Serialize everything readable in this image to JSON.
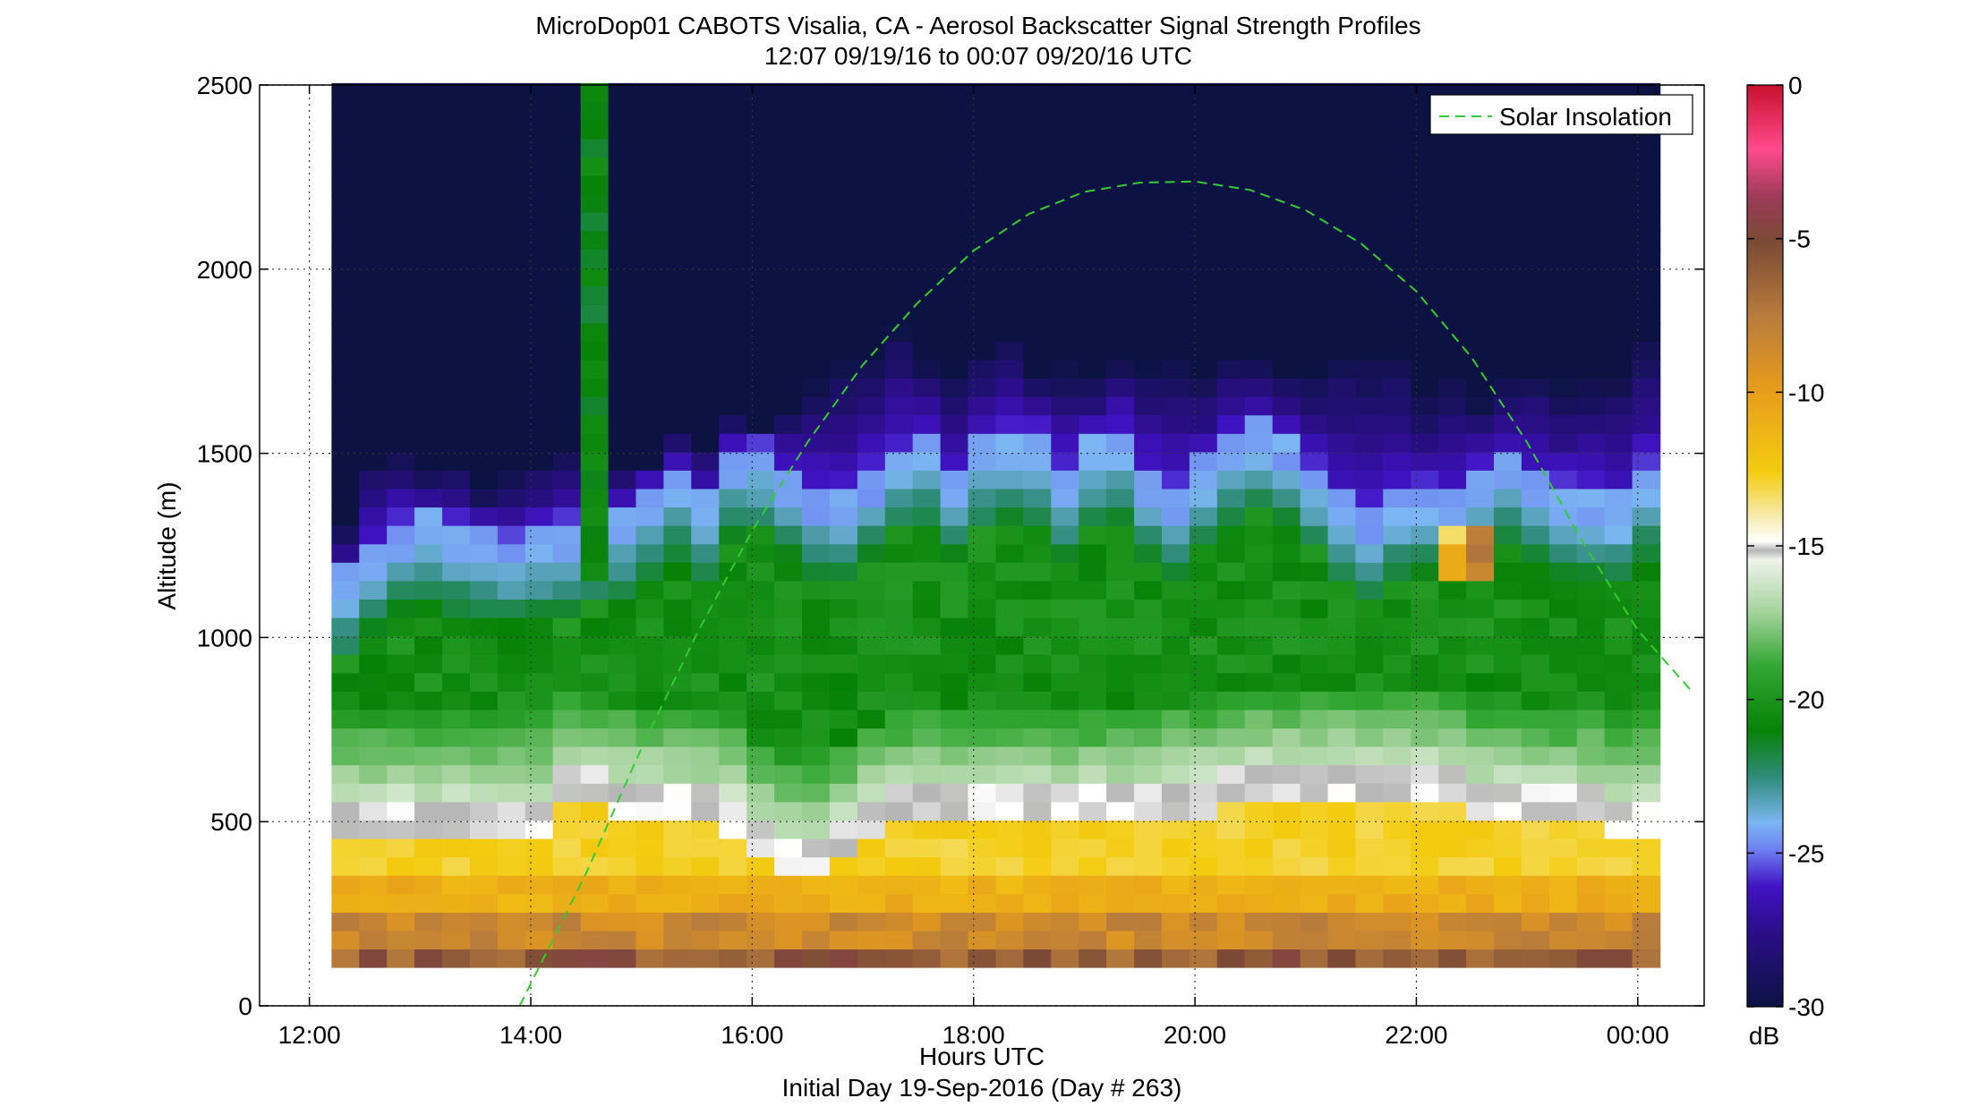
{
  "chart_data": {
    "type": "heatmap",
    "title": "MicroDop01 CABOTS Visalia, CA - Aerosol Backscatter Signal Strength Profiles",
    "subtitle": "12:07 09/19/16 to 00:07 09/20/16  UTC",
    "xlabel": "Hours UTC",
    "xlabel2": "Initial Day 19-Sep-2016 (Day # 263)",
    "ylabel": "Altitude (m)",
    "xlim": [
      11.55,
      24.6
    ],
    "ylim": [
      0,
      2500
    ],
    "x_ticks": [
      12,
      14,
      16,
      18,
      20,
      22,
      24
    ],
    "x_tick_labels": [
      "12:00",
      "14:00",
      "16:00",
      "18:00",
      "20:00",
      "22:00",
      "00:00"
    ],
    "y_ticks": [
      0,
      500,
      1000,
      1500,
      2000,
      2500
    ],
    "y_tick_labels": [
      "0",
      "500",
      "1000",
      "1500",
      "2000",
      "2500"
    ],
    "grid": "dotted",
    "colorbar": {
      "label": "dB",
      "clim": [
        -30,
        0
      ],
      "ticks": [
        0,
        -5,
        -10,
        -15,
        -20,
        -25,
        -30
      ],
      "tick_labels": [
        "0",
        "-5",
        "-10",
        "-15",
        "-20",
        "-25",
        "-30"
      ]
    },
    "data_time_range_h": [
      12.2,
      24.15
    ],
    "time_step_h": 0.25,
    "altitude_range_m": [
      105,
      2500
    ],
    "altitude_step_m": 50,
    "profile_times_h": [
      12.2,
      12.45,
      12.7,
      12.95,
      13.2,
      13.45,
      13.7,
      13.95,
      14.2,
      14.45,
      14.7,
      14.95,
      15.2,
      15.45,
      15.7,
      15.95,
      16.2,
      16.45,
      16.7,
      16.95,
      17.2,
      17.45,
      17.7,
      17.95,
      18.2,
      18.45,
      18.7,
      18.95,
      19.2,
      19.45,
      19.7,
      19.95,
      20.2,
      20.45,
      20.7,
      20.95,
      21.2,
      21.45,
      21.7,
      21.95,
      22.2,
      22.45,
      22.7,
      22.95,
      23.2,
      23.45,
      23.7,
      23.95
    ],
    "aerosol_layer_top_m": [
      1100,
      1180,
      1230,
      1250,
      1230,
      1210,
      1190,
      1210,
      1230,
      1240,
      1260,
      1330,
      1380,
      1300,
      1430,
      1440,
      1380,
      1320,
      1320,
      1380,
      1440,
      1460,
      1380,
      1450,
      1480,
      1470,
      1380,
      1450,
      1480,
      1380,
      1330,
      1400,
      1450,
      1500,
      1460,
      1390,
      1300,
      1260,
      1310,
      1330,
      1310,
      1380,
      1410,
      1360,
      1330,
      1320,
      1300,
      1380
    ],
    "haze_top_m": [
      1300,
      1480,
      1520,
      1440,
      1460,
      1400,
      1440,
      1480,
      1500,
      1360,
      1480,
      1470,
      1560,
      1530,
      1600,
      1560,
      1610,
      1690,
      1760,
      1780,
      1840,
      1750,
      1720,
      1780,
      1800,
      1730,
      1750,
      1720,
      1760,
      1740,
      1770,
      1700,
      1780,
      1740,
      1720,
      1700,
      1770,
      1750,
      1760,
      1640,
      1710,
      1640,
      1720,
      1730,
      1690,
      1710,
      1720,
      1800
    ],
    "mixed_layer_top_m": [
      540,
      540,
      540,
      540,
      540,
      540,
      540,
      540,
      600,
      600,
      580,
      580,
      570,
      560,
      540,
      480,
      440,
      440,
      480,
      520,
      560,
      580,
      560,
      560,
      560,
      560,
      560,
      560,
      560,
      560,
      580,
      590,
      600,
      620,
      620,
      630,
      630,
      620,
      620,
      620,
      600,
      580,
      580,
      580,
      560,
      560,
      540,
      540
    ],
    "dust_column": {
      "time_h": [
        14.45,
        14.6
      ],
      "altitude_m": [
        540,
        2500
      ],
      "value_db": -21
    },
    "feature_cells_db": [
      {
        "t": 22.3,
        "alt_m": [
          1150,
          1310
        ],
        "value_db": -12
      },
      {
        "t": 22.55,
        "alt_m": [
          1150,
          1310
        ],
        "value_db": -7
      }
    ],
    "series": [
      {
        "name": "Solar Insolation",
        "style": "dashed",
        "color": "#33cc33",
        "x": [
          13.9,
          14.5,
          15.0,
          15.5,
          16.0,
          16.5,
          17.0,
          17.5,
          18.0,
          18.5,
          19.0,
          19.5,
          20.0,
          20.5,
          21.0,
          21.5,
          22.0,
          22.5,
          23.0,
          23.5,
          24.0,
          24.5
        ],
        "y": [
          0,
          360,
          700,
          1010,
          1290,
          1530,
          1740,
          1910,
          2050,
          2150,
          2210,
          2235,
          2238,
          2215,
          2160,
          2070,
          1940,
          1760,
          1530,
          1260,
          1020,
          850
        ]
      }
    ],
    "legend": "top-right"
  },
  "colors": {
    "background_above_layer": "#0c1343",
    "colormap": [
      "#0c1343",
      "#3a0da8",
      "#6d7ff0",
      "#2e8b78",
      "#0b8a0b",
      "#e6f0e3",
      "#f3cc10",
      "#8b5a2b",
      "#ff4a8c",
      "#c8102e"
    ]
  }
}
